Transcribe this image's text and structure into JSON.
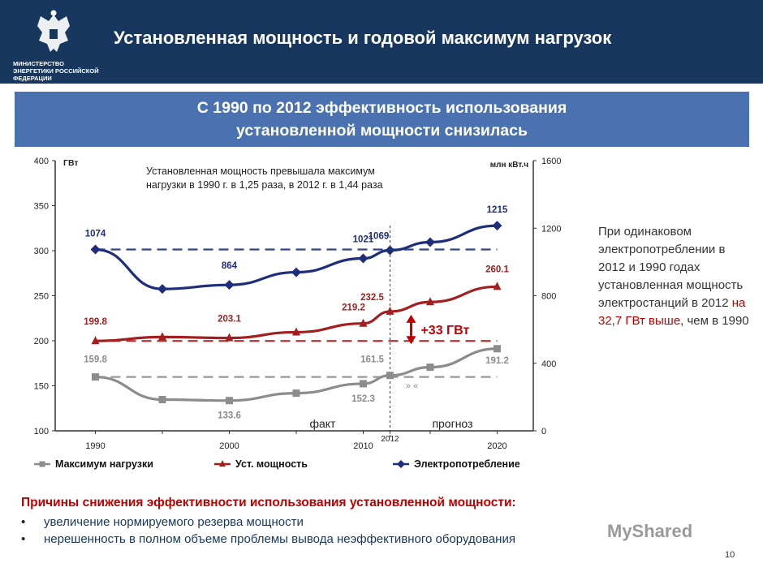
{
  "header": {
    "title": "Установленная мощность и годовой максимум нагрузок",
    "ministry_label": "МИНИСТЕРСТВО ЭНЕРГЕТИКИ РОССИЙСКОЙ ФЕДЕРАЦИИ",
    "emblem_icon": "double-headed-eagle-icon"
  },
  "banner": {
    "line1": "С 1990 по 2012 эффективность использования",
    "line2": "установленной мощности снизилась"
  },
  "annotation": "Установленная мощность превышала максимум нагрузки в 1990 г. в 1,25 раза, в 2012 г. в 1,44 раза",
  "side_note": {
    "prefix": "При одинаковом электропотреблении в 2012 и 1990 годах установленная мощность электростанций в 2012 ",
    "highlight": "на 32,7 ГВт выше",
    "suffix": ", чем в 1990"
  },
  "chart_data": {
    "type": "line",
    "x": [
      1990,
      1995,
      2000,
      2005,
      2010,
      2012,
      2015,
      2020
    ],
    "x_ticks": [
      "1990",
      "2000",
      "2010",
      "2020"
    ],
    "divider_label": "2012",
    "fact_label": "факт",
    "forecast_label": "прогноз",
    "left_axis": {
      "unit": "ГВт",
      "ylim": [
        100,
        400
      ],
      "ticks": [
        100,
        150,
        200,
        250,
        300,
        350,
        400
      ]
    },
    "right_axis": {
      "unit": "млн кВт.ч",
      "ylim": [
        0,
        1600
      ],
      "ticks": [
        0,
        400,
        800,
        1200,
        1600
      ]
    },
    "series": [
      {
        "name": "Максимум нагрузки",
        "color": "#8c8c8c",
        "axis": "left",
        "values": [
          159.8,
          134.7,
          133.6,
          141.8,
          152.3,
          161.5,
          170.6,
          191.2
        ],
        "labels": [
          "159.8",
          "",
          "133.6",
          "",
          "152.3",
          "161.5",
          "",
          "191.2"
        ]
      },
      {
        "name": "Уст. мощность",
        "color": "#a31f1f",
        "axis": "left",
        "values": [
          199.8,
          204.2,
          203.1,
          209.5,
          219.2,
          232.5,
          243.0,
          260.1
        ],
        "labels": [
          "199.8",
          "",
          "203.1",
          "",
          "219.2",
          "232.5",
          "",
          "260.1"
        ]
      },
      {
        "name": "Электропотребление",
        "color": "#1f2e7a",
        "axis": "right",
        "values": [
          1074,
          840,
          864,
          939,
          1021,
          1069,
          1117,
          1215
        ],
        "labels": [
          "1074",
          "",
          "864",
          "",
          "1021",
          "1069",
          "",
          "1215"
        ]
      }
    ],
    "reference_lines": [
      {
        "series": "Максимум нагрузки",
        "value": 159.8
      },
      {
        "series": "Уст. мощность",
        "value": 199.8
      },
      {
        "series": "Электропотребление",
        "value": 1074
      }
    ],
    "gap_label": "+33 ГВт"
  },
  "reasons": {
    "title": "Причины снижения эффективности использования установленной мощности:",
    "items": [
      "увеличение нормируемого резерва мощности",
      "нерешенность в полном объеме проблемы вывода неэффективного оборудования"
    ]
  },
  "watermark": "MyShared",
  "page_number": "10"
}
